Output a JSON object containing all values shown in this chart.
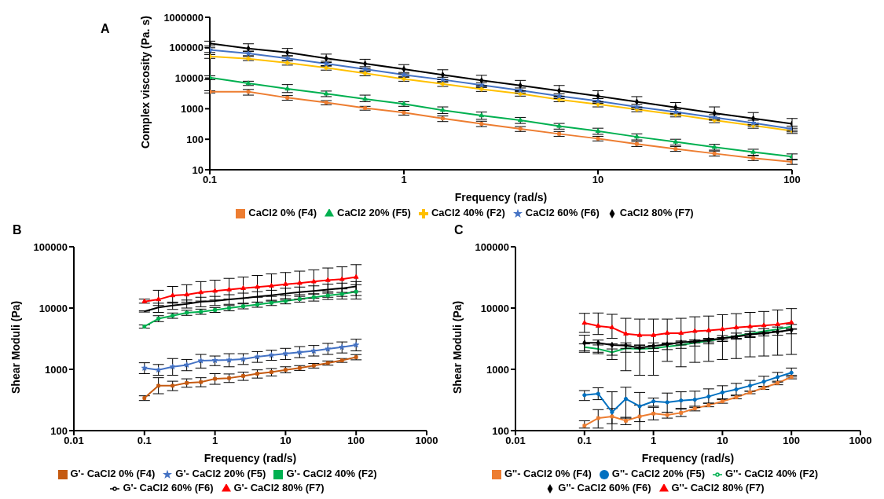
{
  "chart_data": [
    {
      "type": "line",
      "title": "A",
      "xlabel": "Frequency (rad/s)",
      "ylabel": "Complex viscosity (Pa. s)",
      "log": "xy",
      "legend": "bottom",
      "grid": false,
      "line_style": "solid",
      "x": [
        0.1,
        0.158,
        0.251,
        0.398,
        0.631,
        1,
        1.585,
        2.512,
        3.981,
        6.31,
        10,
        15.85,
        25.12,
        39.81,
        63.1,
        100
      ],
      "xlim": [
        0.1,
        100
      ],
      "xticks": [
        0.1,
        1,
        10,
        100
      ],
      "ylim": [
        10,
        1000000
      ],
      "yticks": [
        10,
        100,
        1000,
        10000,
        100000,
        1000000
      ],
      "series": [
        {
          "name": "CaCl2 0% (F4)",
          "color": "#ed7d31",
          "marker": "square",
          "values": [
            3600,
            3600,
            2300,
            1600,
            1050,
            750,
            480,
            320,
            220,
            150,
            105,
            70,
            48,
            34,
            24,
            18
          ],
          "errors": [
            [
              3300,
              3900
            ],
            [
              2800,
              4300
            ],
            [
              1900,
              2700
            ],
            [
              1350,
              1850
            ],
            [
              900,
              1200
            ],
            [
              620,
              880
            ],
            [
              380,
              580
            ],
            [
              260,
              390
            ],
            [
              180,
              260
            ],
            [
              125,
              180
            ],
            [
              88,
              125
            ],
            [
              58,
              85
            ],
            [
              40,
              58
            ],
            [
              28,
              41
            ],
            [
              20,
              29
            ],
            [
              15,
              21
            ]
          ]
        },
        {
          "name": "CaCl2 20% (F5)",
          "color": "#00b050",
          "marker": "triangle",
          "values": [
            10500,
            6800,
            4500,
            3100,
            2100,
            1450,
            900,
            600,
            420,
            270,
            185,
            120,
            82,
            55,
            38,
            27
          ],
          "errors": [
            [
              9000,
              12000
            ],
            [
              5800,
              8000
            ],
            [
              3400,
              6200
            ],
            [
              2500,
              3800
            ],
            [
              1700,
              2800
            ],
            [
              1200,
              1700
            ],
            [
              700,
              1150
            ],
            [
              450,
              780
            ],
            [
              330,
              520
            ],
            [
              215,
              330
            ],
            [
              145,
              230
            ],
            [
              95,
              150
            ],
            [
              64,
              100
            ],
            [
              44,
              68
            ],
            [
              30,
              47
            ],
            [
              22,
              33
            ]
          ]
        },
        {
          "name": "CaCl2 40% (F2)",
          "color": "#ffc000",
          "marker": "cross",
          "values": [
            52000,
            44000,
            32000,
            22000,
            14500,
            9500,
            6500,
            4400,
            3100,
            2000,
            1400,
            950,
            650,
            420,
            280,
            190
          ],
          "errors": [
            [
              45000,
              60000
            ],
            [
              38000,
              52000
            ],
            [
              27000,
              38000
            ],
            [
              18500,
              26000
            ],
            [
              12000,
              17500
            ],
            [
              8000,
              11500
            ],
            [
              5400,
              7800
            ],
            [
              3700,
              5300
            ],
            [
              2600,
              3700
            ],
            [
              1700,
              2400
            ],
            [
              1150,
              1650
            ],
            [
              800,
              1150
            ],
            [
              540,
              780
            ],
            [
              350,
              510
            ],
            [
              230,
              340
            ],
            [
              155,
              230
            ]
          ]
        },
        {
          "name": "CaCl2 60% (F6)",
          "color": "#4472c4",
          "marker": "star",
          "values": [
            85000,
            65000,
            45000,
            30000,
            20000,
            13000,
            9000,
            6000,
            4000,
            2600,
            1800,
            1150,
            780,
            520,
            340,
            220
          ],
          "errors": [
            [
              70000,
              100000
            ],
            [
              55000,
              78000
            ],
            [
              37000,
              54000
            ],
            [
              25000,
              36000
            ],
            [
              16500,
              24000
            ],
            [
              10800,
              15500
            ],
            [
              7500,
              10800
            ],
            [
              5000,
              7200
            ],
            [
              3300,
              4800
            ],
            [
              2150,
              3100
            ],
            [
              1500,
              2150
            ],
            [
              950,
              1400
            ],
            [
              640,
              950
            ],
            [
              420,
              640
            ],
            [
              270,
              420
            ],
            [
              175,
              270
            ]
          ]
        },
        {
          "name": "CaCl2 80% (F7)",
          "color": "#000000",
          "marker": "diamond",
          "values": [
            140000,
            95000,
            70000,
            45000,
            30000,
            20000,
            13000,
            8500,
            5800,
            3900,
            2600,
            1700,
            1100,
            720,
            480,
            320
          ],
          "errors": [
            [
              115000,
              165000
            ],
            [
              75000,
              135000
            ],
            [
              55000,
              95000
            ],
            [
              33000,
              62000
            ],
            [
              21000,
              42000
            ],
            [
              14000,
              28000
            ],
            [
              9000,
              19000
            ],
            [
              5800,
              12500
            ],
            [
              3900,
              8500
            ],
            [
              2600,
              5800
            ],
            [
              1700,
              3900
            ],
            [
              1100,
              2500
            ],
            [
              700,
              1600
            ],
            [
              450,
              1150
            ],
            [
              300,
              750
            ],
            [
              200,
              480
            ]
          ]
        }
      ]
    },
    {
      "type": "line",
      "title": "B",
      "xlabel": "Frequency (rad/s)",
      "ylabel": "Shear Moduli (Pa)",
      "log": "xy",
      "legend": "bottom",
      "grid": false,
      "line_style": "solid",
      "x": [
        0.1,
        0.158,
        0.251,
        0.398,
        0.631,
        1,
        1.585,
        2.512,
        3.981,
        6.31,
        10,
        15.85,
        25.12,
        39.81,
        63.1,
        100
      ],
      "xlim": [
        0.01,
        1000
      ],
      "xticks": [
        0.01,
        0.1,
        1,
        10,
        100,
        1000
      ],
      "ylim": [
        100,
        100000
      ],
      "yticks": [
        100,
        1000,
        10000,
        100000
      ],
      "series": [
        {
          "name": "G'- CaCl2 0% (F4)",
          "color": "#c55a11",
          "marker": "square",
          "values": [
            340,
            540,
            540,
            600,
            620,
            700,
            720,
            780,
            850,
            900,
            980,
            1050,
            1150,
            1270,
            1400,
            1580
          ],
          "errors": [
            [
              310,
              370
            ],
            [
              400,
              730
            ],
            [
              450,
              640
            ],
            [
              510,
              700
            ],
            [
              520,
              730
            ],
            [
              570,
              850
            ],
            [
              610,
              840
            ],
            [
              660,
              900
            ],
            [
              720,
              980
            ],
            [
              780,
              1030
            ],
            [
              880,
              1100
            ],
            [
              960,
              1150
            ],
            [
              1050,
              1250
            ],
            [
              1170,
              1370
            ],
            [
              1300,
              1500
            ],
            [
              1430,
              1740
            ]
          ]
        },
        {
          "name": "G'- CaCl2 20% (F5)",
          "color": "#4472c4",
          "marker": "star",
          "values": [
            1050,
            980,
            1100,
            1180,
            1380,
            1400,
            1420,
            1470,
            1600,
            1700,
            1800,
            1900,
            2000,
            2150,
            2300,
            2500
          ],
          "errors": [
            [
              850,
              1280
            ],
            [
              800,
              1200
            ],
            [
              800,
              1500
            ],
            [
              950,
              1450
            ],
            [
              1050,
              1750
            ],
            [
              1150,
              1650
            ],
            [
              1100,
              1800
            ],
            [
              1200,
              1800
            ],
            [
              1300,
              1950
            ],
            [
              1400,
              2050
            ],
            [
              1450,
              2200
            ],
            [
              1550,
              2350
            ],
            [
              1650,
              2450
            ],
            [
              1750,
              2650
            ],
            [
              1850,
              2800
            ],
            [
              2000,
              3100
            ]
          ]
        },
        {
          "name": "G'- CaCl2 40% (F2)",
          "color": "#00b050",
          "marker": "square",
          "values": [
            5000,
            6700,
            7500,
            8400,
            8700,
            9300,
            10000,
            10700,
            11400,
            12200,
            13000,
            14000,
            15000,
            16000,
            17000,
            18500
          ],
          "errors": [
            [
              4700,
              5300
            ],
            [
              6000,
              7500
            ],
            [
              6800,
              8300
            ],
            [
              7600,
              9200
            ],
            [
              7900,
              9600
            ],
            [
              8500,
              10200
            ],
            [
              9000,
              11000
            ],
            [
              9700,
              11700
            ],
            [
              10300,
              12500
            ],
            [
              11000,
              13400
            ],
            [
              11700,
              14300
            ],
            [
              12500,
              15500
            ],
            [
              13000,
              17000
            ],
            [
              13800,
              18500
            ],
            [
              14000,
              20500
            ],
            [
              14000,
              24000
            ]
          ]
        },
        {
          "name": "G'- CaCl2 60% (F6)",
          "color": "#000000",
          "marker": "none",
          "values": [
            8800,
            10200,
            11000,
            11700,
            12700,
            13000,
            13800,
            14500,
            15300,
            16200,
            17200,
            18200,
            19000,
            20000,
            21000,
            22500
          ],
          "errors": [
            [
              8600,
              9000
            ],
            [
              8500,
              12000
            ],
            [
              9500,
              12500
            ],
            [
              10000,
              13500
            ],
            [
              10500,
              15000
            ],
            [
              11000,
              15500
            ],
            [
              11500,
              16500
            ],
            [
              12000,
              17500
            ],
            [
              12500,
              18500
            ],
            [
              13000,
              19500
            ],
            [
              13500,
              21000
            ],
            [
              14000,
              22000
            ],
            [
              14500,
              23000
            ],
            [
              15000,
              24500
            ],
            [
              15500,
              25500
            ],
            [
              16000,
              27000
            ]
          ]
        },
        {
          "name": "G'- CaCl2 80% (F7)",
          "color": "#ff0000",
          "marker": "triangle",
          "values": [
            12800,
            13800,
            16000,
            16500,
            18000,
            19000,
            20000,
            21000,
            22000,
            23000,
            24500,
            25500,
            27000,
            28500,
            29500,
            32000
          ],
          "errors": [
            [
              12000,
              14000
            ],
            [
              11000,
              19500
            ],
            [
              12000,
              22500
            ],
            [
              12500,
              24000
            ],
            [
              13000,
              27000
            ],
            [
              13500,
              28500
            ],
            [
              14000,
              30500
            ],
            [
              14500,
              32000
            ],
            [
              15000,
              34000
            ],
            [
              15500,
              36000
            ],
            [
              16000,
              38000
            ],
            [
              16500,
              40000
            ],
            [
              17000,
              42000
            ],
            [
              17500,
              45000
            ],
            [
              18000,
              47000
            ],
            [
              18500,
              51000
            ]
          ]
        }
      ]
    },
    {
      "type": "line",
      "title": "C",
      "xlabel": "Frequency (rad/s)",
      "ylabel": "Shear Moduli (Pa)",
      "log": "xy",
      "legend": "bottom",
      "grid": false,
      "line_style": "solid",
      "x": [
        0.1,
        0.158,
        0.251,
        0.398,
        0.631,
        1,
        1.585,
        2.512,
        3.981,
        6.31,
        10,
        15.85,
        25.12,
        39.81,
        63.1,
        100
      ],
      "xlim": [
        0.01,
        1000
      ],
      "xticks": [
        0.01,
        0.1,
        1,
        10,
        100,
        1000
      ],
      "ylim": [
        100,
        100000
      ],
      "yticks": [
        100,
        1000,
        10000,
        100000
      ],
      "series": [
        {
          "name": "G''- CaCl2 0% (F4)",
          "color": "#ed7d31",
          "marker": "square",
          "values": [
            120,
            160,
            170,
            145,
            170,
            190,
            180,
            195,
            230,
            260,
            300,
            350,
            420,
            500,
            600,
            750
          ],
          "errors": [
            [
              110,
              145
            ],
            [
              110,
              220
            ],
            [
              130,
              230
            ],
            [
              125,
              165
            ],
            [
              100,
              260
            ],
            [
              150,
              240
            ],
            [
              160,
              200
            ],
            [
              170,
              225
            ],
            [
              210,
              250
            ],
            [
              245,
              280
            ],
            [
              280,
              320
            ],
            [
              330,
              370
            ],
            [
              400,
              440
            ],
            [
              470,
              530
            ],
            [
              560,
              640
            ],
            [
              700,
              800
            ]
          ]
        },
        {
          "name": "G''- CaCl2 20% (F5)",
          "color": "#0070c0",
          "marker": "circle",
          "values": [
            380,
            400,
            200,
            330,
            250,
            300,
            290,
            310,
            320,
            360,
            420,
            470,
            540,
            630,
            750,
            880
          ],
          "errors": [
            [
              310,
              450
            ],
            [
              320,
              500
            ],
            [
              100,
              430
            ],
            [
              160,
              510
            ],
            [
              140,
              420
            ],
            [
              250,
              340
            ],
            [
              200,
              410
            ],
            [
              230,
              430
            ],
            [
              240,
              440
            ],
            [
              280,
              480
            ],
            [
              330,
              540
            ],
            [
              380,
              590
            ],
            [
              440,
              660
            ],
            [
              520,
              770
            ],
            [
              620,
              890
            ],
            [
              750,
              1050
            ]
          ]
        },
        {
          "name": "G''- CaCl2 40% (F2)",
          "color": "#00b050",
          "marker": "none",
          "values": [
            2300,
            2150,
            1900,
            2200,
            2150,
            2200,
            2350,
            2500,
            2700,
            2900,
            3200,
            3500,
            3800,
            4200,
            4500,
            5000
          ],
          "errors": [
            [
              2000,
              2600
            ],
            [
              1900,
              2500
            ],
            [
              1700,
              2150
            ],
            [
              1900,
              2500
            ],
            [
              1900,
              2450
            ],
            [
              1950,
              2450
            ],
            [
              2100,
              2600
            ],
            [
              2200,
              2800
            ],
            [
              2400,
              3000
            ],
            [
              2600,
              3200
            ],
            [
              2850,
              3550
            ],
            [
              3100,
              3900
            ],
            [
              3400,
              4200
            ],
            [
              3800,
              4600
            ],
            [
              4100,
              4900
            ],
            [
              4600,
              5400
            ]
          ]
        },
        {
          "name": "G''- CaCl2 60% (F6)",
          "color": "#000000",
          "marker": "diamond",
          "values": [
            2700,
            2700,
            2500,
            2450,
            2250,
            2400,
            2550,
            2750,
            2850,
            3000,
            3200,
            3400,
            3700,
            3900,
            4100,
            4400
          ],
          "errors": [
            [
              1900,
              3600
            ],
            [
              1800,
              3000
            ],
            [
              1450,
              2600
            ],
            [
              950,
              2700
            ],
            [
              800,
              2500
            ],
            [
              800,
              2700
            ],
            [
              1350,
              2700
            ],
            [
              1100,
              2900
            ],
            [
              1300,
              3000
            ],
            [
              1350,
              3100
            ],
            [
              1450,
              3300
            ],
            [
              1500,
              3500
            ],
            [
              1600,
              3800
            ],
            [
              1650,
              4000
            ],
            [
              1700,
              4200
            ],
            [
              1750,
              4500
            ]
          ]
        },
        {
          "name": "G''- CaCl2 80% (F7)",
          "color": "#ff0000",
          "marker": "triangle",
          "values": [
            5700,
            5100,
            4800,
            3800,
            3600,
            3600,
            3900,
            3900,
            4200,
            4300,
            4500,
            4800,
            5000,
            5200,
            5400,
            5800
          ],
          "errors": [
            [
              4000,
              8200
            ],
            [
              3700,
              8300
            ],
            [
              3200,
              7900
            ],
            [
              2200,
              6800
            ],
            [
              2200,
              6600
            ],
            [
              2200,
              6600
            ],
            [
              2600,
              6600
            ],
            [
              2500,
              6800
            ],
            [
              2700,
              7200
            ],
            [
              2800,
              7400
            ],
            [
              3000,
              7800
            ],
            [
              3200,
              8100
            ],
            [
              3300,
              8500
            ],
            [
              3500,
              8800
            ],
            [
              3600,
              9300
            ],
            [
              3800,
              9800
            ]
          ]
        }
      ]
    }
  ]
}
